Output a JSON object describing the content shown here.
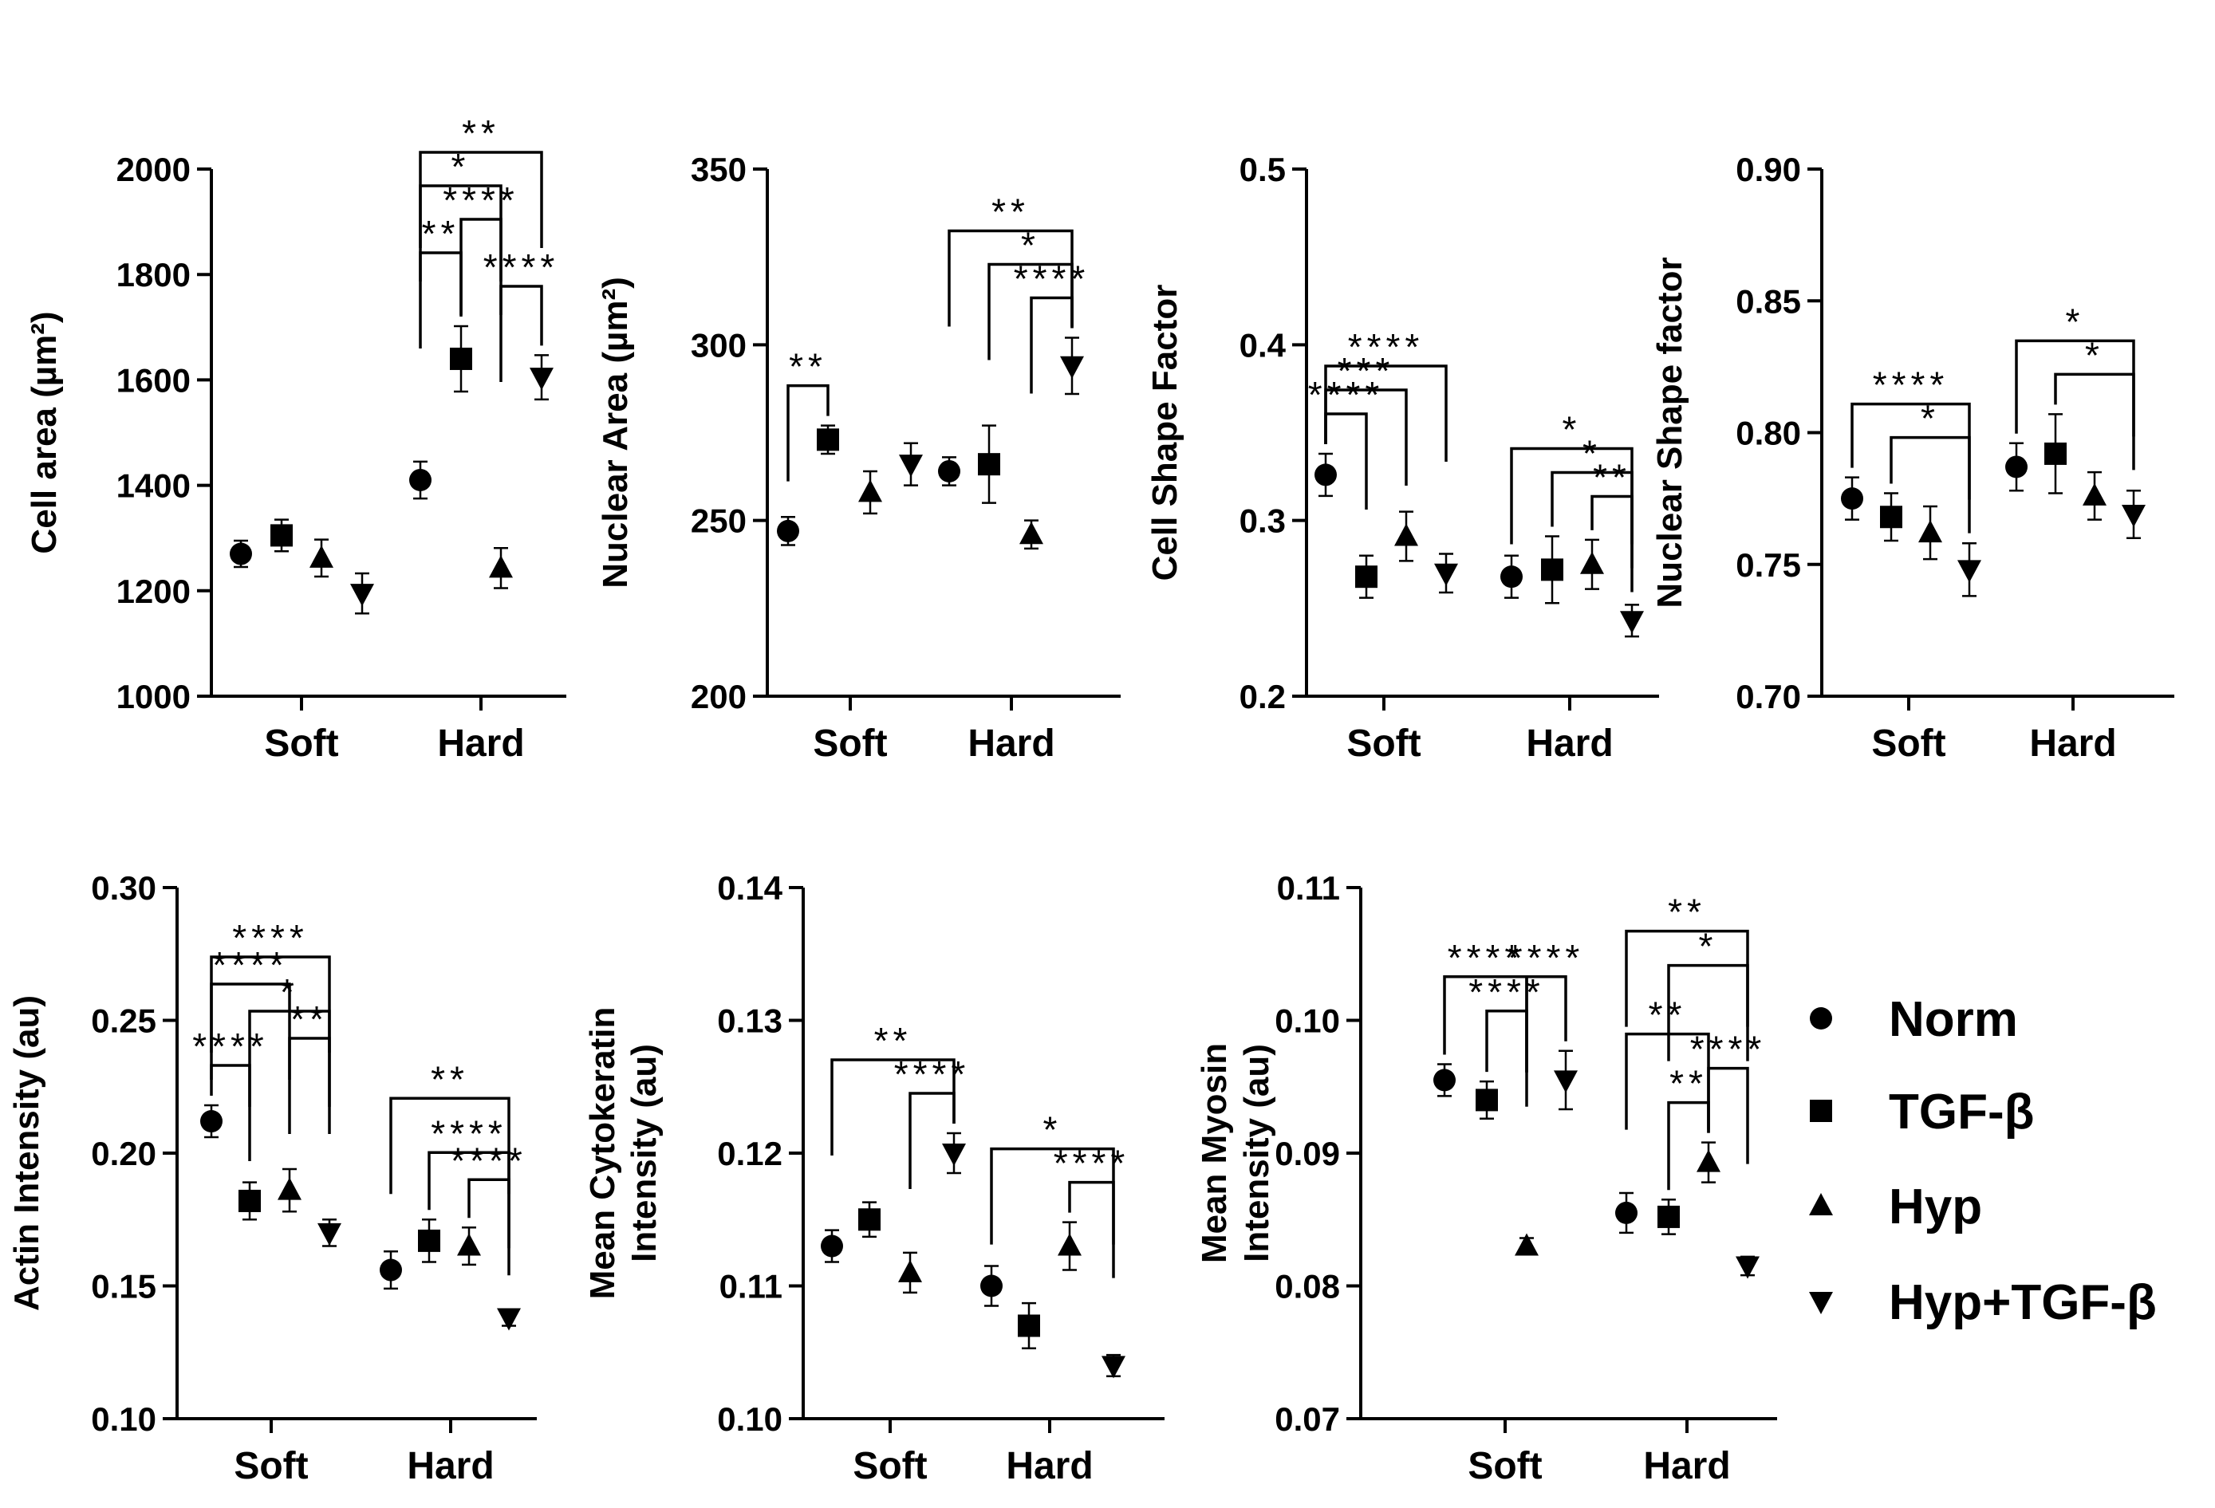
{
  "chart_data": [
    {
      "type": "scatter",
      "ylabel": "Cell area (µm²)",
      "ylim": [
        1000,
        2000
      ],
      "yticks": [
        1000,
        1200,
        1400,
        1600,
        1800,
        2000
      ],
      "ytick_labels": [
        "1000",
        "1200",
        "1400",
        "1600",
        "1800",
        "2000"
      ],
      "categories": [
        "Soft",
        "Hard"
      ],
      "series": [
        {
          "name": "Norm",
          "marker": "circle",
          "values": [
            1270,
            1410
          ],
          "errors": [
            25,
            35
          ]
        },
        {
          "name": "TGF-β",
          "marker": "square",
          "values": [
            1305,
            1640
          ],
          "errors": [
            30,
            62
          ]
        },
        {
          "name": "Hyp",
          "marker": "triangle-up",
          "values": [
            1262,
            1243
          ],
          "errors": [
            35,
            38
          ]
        },
        {
          "name": "Hyp+TGF-β",
          "marker": "triangle-down",
          "values": [
            1195,
            1605
          ],
          "errors": [
            38,
            42
          ]
        }
      ],
      "significance": [
        {
          "from": [
            1,
            0
          ],
          "to": [
            1,
            3
          ],
          "level": 4,
          "label": "**"
        },
        {
          "from": [
            1,
            0
          ],
          "to": [
            1,
            2
          ],
          "level": 3,
          "label": "*"
        },
        {
          "from": [
            1,
            1
          ],
          "to": [
            1,
            2
          ],
          "level": 2,
          "label": "****"
        },
        {
          "from": [
            1,
            0
          ],
          "to": [
            1,
            1
          ],
          "level": 1,
          "label": "**"
        },
        {
          "from": [
            1,
            2
          ],
          "to": [
            1,
            3
          ],
          "level": 0,
          "label": "****"
        }
      ]
    },
    {
      "type": "scatter",
      "ylabel": "Nuclear Area (µm²)",
      "ylim": [
        200,
        350
      ],
      "yticks": [
        200,
        250,
        300,
        350
      ],
      "ytick_labels": [
        "200",
        "250",
        "300",
        "350"
      ],
      "categories": [
        "Soft",
        "Hard"
      ],
      "series": [
        {
          "name": "Norm",
          "marker": "circle",
          "values": [
            247,
            264
          ],
          "errors": [
            4,
            4
          ]
        },
        {
          "name": "TGF-β",
          "marker": "square",
          "values": [
            273,
            266
          ],
          "errors": [
            4,
            11
          ]
        },
        {
          "name": "Hyp",
          "marker": "triangle-up",
          "values": [
            258,
            246
          ],
          "errors": [
            6,
            4
          ]
        },
        {
          "name": "Hyp+TGF-β",
          "marker": "triangle-down",
          "values": [
            266,
            294
          ],
          "errors": [
            6,
            8
          ]
        }
      ],
      "significance": [
        {
          "from": [
            0,
            0
          ],
          "to": [
            0,
            1
          ],
          "level": 0,
          "label": "**"
        },
        {
          "from": [
            1,
            0
          ],
          "to": [
            1,
            3
          ],
          "level": 2,
          "label": "**"
        },
        {
          "from": [
            1,
            1
          ],
          "to": [
            1,
            3
          ],
          "level": 1,
          "label": "*"
        },
        {
          "from": [
            1,
            2
          ],
          "to": [
            1,
            3
          ],
          "level": 0,
          "label": "****"
        }
      ]
    },
    {
      "type": "scatter",
      "ylabel": "Cell Shape Factor",
      "ylim": [
        0.2,
        0.5
      ],
      "yticks": [
        0.2,
        0.3,
        0.4,
        0.5
      ],
      "ytick_labels": [
        "0.2",
        "0.3",
        "0.4",
        "0.5"
      ],
      "categories": [
        "Soft",
        "Hard"
      ],
      "series": [
        {
          "name": "Norm",
          "marker": "circle",
          "values": [
            0.326,
            0.268
          ],
          "errors": [
            0.012,
            0.012
          ]
        },
        {
          "name": "TGF-β",
          "marker": "square",
          "values": [
            0.268,
            0.272
          ],
          "errors": [
            0.012,
            0.019
          ]
        },
        {
          "name": "Hyp",
          "marker": "triangle-up",
          "values": [
            0.291,
            0.275
          ],
          "errors": [
            0.014,
            0.014
          ]
        },
        {
          "name": "Hyp+TGF-β",
          "marker": "triangle-down",
          "values": [
            0.27,
            0.243
          ],
          "errors": [
            0.011,
            0.009
          ]
        }
      ],
      "significance": [
        {
          "from": [
            0,
            0
          ],
          "to": [
            0,
            3
          ],
          "level": 2,
          "label": "****"
        },
        {
          "from": [
            0,
            0
          ],
          "to": [
            0,
            2
          ],
          "level": 1,
          "label": "***"
        },
        {
          "from": [
            0,
            0
          ],
          "to": [
            0,
            1
          ],
          "level": 0,
          "label": "****"
        },
        {
          "from": [
            1,
            0
          ],
          "to": [
            1,
            3
          ],
          "level": 2,
          "label": "*"
        },
        {
          "from": [
            1,
            1
          ],
          "to": [
            1,
            3
          ],
          "level": 1,
          "label": "*"
        },
        {
          "from": [
            1,
            2
          ],
          "to": [
            1,
            3
          ],
          "level": 0,
          "label": "**"
        }
      ]
    },
    {
      "type": "scatter",
      "ylabel": "Nuclear Shape factor",
      "ylim": [
        0.7,
        0.9
      ],
      "yticks": [
        0.7,
        0.75,
        0.8,
        0.85,
        0.9
      ],
      "ytick_labels": [
        "0.70",
        "0.75",
        "0.80",
        "0.85",
        "0.90"
      ],
      "categories": [
        "Soft",
        "Hard"
      ],
      "series": [
        {
          "name": "Norm",
          "marker": "circle",
          "values": [
            0.775,
            0.787
          ],
          "errors": [
            0.008,
            0.009
          ]
        },
        {
          "name": "TGF-β",
          "marker": "square",
          "values": [
            0.768,
            0.792
          ],
          "errors": [
            0.009,
            0.015
          ]
        },
        {
          "name": "Hyp",
          "marker": "triangle-up",
          "values": [
            0.762,
            0.776
          ],
          "errors": [
            0.01,
            0.009
          ]
        },
        {
          "name": "Hyp+TGF-β",
          "marker": "triangle-down",
          "values": [
            0.748,
            0.769
          ],
          "errors": [
            0.01,
            0.009
          ]
        }
      ],
      "significance": [
        {
          "from": [
            0,
            0
          ],
          "to": [
            0,
            3
          ],
          "level": 1,
          "label": "****"
        },
        {
          "from": [
            0,
            1
          ],
          "to": [
            0,
            3
          ],
          "level": 0,
          "label": "*"
        },
        {
          "from": [
            1,
            0
          ],
          "to": [
            1,
            3
          ],
          "level": 1,
          "label": "*"
        },
        {
          "from": [
            1,
            1
          ],
          "to": [
            1,
            3
          ],
          "level": 0,
          "label": "*"
        }
      ]
    },
    {
      "type": "scatter",
      "ylabel": "Actin Intensity (au)",
      "ylim": [
        0.1,
        0.3
      ],
      "yticks": [
        0.1,
        0.15,
        0.2,
        0.25,
        0.3
      ],
      "ytick_labels": [
        "0.10",
        "0.15",
        "0.20",
        "0.25",
        "0.30"
      ],
      "categories": [
        "Soft",
        "Hard"
      ],
      "series": [
        {
          "name": "Norm",
          "marker": "circle",
          "values": [
            0.212,
            0.156
          ],
          "errors": [
            0.006,
            0.007
          ]
        },
        {
          "name": "TGF-β",
          "marker": "square",
          "values": [
            0.182,
            0.167
          ],
          "errors": [
            0.007,
            0.008
          ]
        },
        {
          "name": "Hyp",
          "marker": "triangle-up",
          "values": [
            0.186,
            0.165
          ],
          "errors": [
            0.008,
            0.007
          ]
        },
        {
          "name": "Hyp+TGF-β",
          "marker": "triangle-down",
          "values": [
            0.17,
            0.138
          ],
          "errors": [
            0.005,
            0.003
          ]
        }
      ],
      "significance": [
        {
          "from": [
            0,
            0
          ],
          "to": [
            0,
            3
          ],
          "level": 4,
          "label": "****"
        },
        {
          "from": [
            0,
            0
          ],
          "to": [
            0,
            2
          ],
          "level": 3,
          "label": "****"
        },
        {
          "from": [
            0,
            0
          ],
          "to": [
            0,
            1
          ],
          "level": 0,
          "label": "****"
        },
        {
          "from": [
            0,
            1
          ],
          "to": [
            0,
            3
          ],
          "level": 2,
          "label": "*"
        },
        {
          "from": [
            0,
            2
          ],
          "to": [
            0,
            3
          ],
          "level": 1,
          "label": "**"
        },
        {
          "from": [
            1,
            0
          ],
          "to": [
            1,
            3
          ],
          "level": 3,
          "label": "**"
        },
        {
          "from": [
            1,
            1
          ],
          "to": [
            1,
            3
          ],
          "level": 1,
          "label": "****"
        },
        {
          "from": [
            1,
            2
          ],
          "to": [
            1,
            3
          ],
          "level": 0,
          "label": "****"
        }
      ]
    },
    {
      "type": "scatter",
      "ylabel": [
        "Mean Cytokeratin",
        "Intensity (au)"
      ],
      "ylim": [
        0.1,
        0.14
      ],
      "yticks": [
        0.1,
        0.11,
        0.12,
        0.13,
        0.14
      ],
      "ytick_labels": [
        "0.10",
        "0.11",
        "0.12",
        "0.13",
        "0.14"
      ],
      "categories": [
        "Soft",
        "Hard"
      ],
      "series": [
        {
          "name": "Norm",
          "marker": "circle",
          "values": [
            0.113,
            0.11
          ],
          "errors": [
            0.0012,
            0.0015
          ]
        },
        {
          "name": "TGF-β",
          "marker": "square",
          "values": [
            0.115,
            0.107
          ],
          "errors": [
            0.0013,
            0.0017
          ]
        },
        {
          "name": "Hyp",
          "marker": "triangle-up",
          "values": [
            0.111,
            0.113
          ],
          "errors": [
            0.0015,
            0.0018
          ]
        },
        {
          "name": "Hyp+TGF-β",
          "marker": "triangle-down",
          "values": [
            0.12,
            0.104
          ],
          "errors": [
            0.0015,
            0.0008
          ]
        }
      ],
      "significance": [
        {
          "from": [
            0,
            0
          ],
          "to": [
            0,
            3
          ],
          "level": 1,
          "label": "**"
        },
        {
          "from": [
            0,
            2
          ],
          "to": [
            0,
            3
          ],
          "level": 0,
          "label": "****"
        },
        {
          "from": [
            1,
            0
          ],
          "to": [
            1,
            3
          ],
          "level": 1,
          "label": "*"
        },
        {
          "from": [
            1,
            2
          ],
          "to": [
            1,
            3
          ],
          "level": 0,
          "label": "****"
        }
      ]
    },
    {
      "type": "scatter",
      "ylabel": [
        "Mean Myosin",
        "Intensity (au)"
      ],
      "ylim": [
        0.07,
        0.11
      ],
      "yticks": [
        0.07,
        0.08,
        0.09,
        0.1,
        0.11
      ],
      "ytick_labels": [
        "0.07",
        "0.08",
        "0.09",
        "0.10",
        "0.11"
      ],
      "categories": [
        "Soft",
        "Hard"
      ],
      "series": [
        {
          "name": "Norm",
          "marker": "circle",
          "values": [
            0.0955,
            0.0855
          ],
          "errors": [
            0.0012,
            0.0015
          ]
        },
        {
          "name": "TGF-β",
          "marker": "square",
          "values": [
            0.094,
            0.0852
          ],
          "errors": [
            0.0014,
            0.0013
          ]
        },
        {
          "name": "Hyp",
          "marker": "triangle-up",
          "values": [
            0.083,
            0.0893
          ],
          "errors": [
            0.0006,
            0.0015
          ]
        },
        {
          "name": "Hyp+TGF-β",
          "marker": "triangle-down",
          "values": [
            0.0955,
            0.0815
          ],
          "errors": [
            0.0022,
            0.0007
          ]
        }
      ],
      "significance": [
        {
          "from": [
            0,
            0
          ],
          "to": [
            0,
            2
          ],
          "level": 1,
          "label": "****"
        },
        {
          "from": [
            0,
            2
          ],
          "to": [
            0,
            3
          ],
          "level": 1,
          "label": "****"
        },
        {
          "from": [
            0,
            1
          ],
          "to": [
            0,
            2
          ],
          "level": 0,
          "label": "****"
        },
        {
          "from": [
            1,
            0
          ],
          "to": [
            1,
            3
          ],
          "level": 5,
          "label": "**"
        },
        {
          "from": [
            1,
            1
          ],
          "to": [
            1,
            3
          ],
          "level": 4,
          "label": "*"
        },
        {
          "from": [
            1,
            0
          ],
          "to": [
            1,
            2
          ],
          "level": 2,
          "label": "**"
        },
        {
          "from": [
            1,
            2
          ],
          "to": [
            1,
            3
          ],
          "level": 1,
          "label": "****"
        },
        {
          "from": [
            1,
            1
          ],
          "to": [
            1,
            2
          ],
          "level": 0,
          "label": "**"
        }
      ]
    }
  ],
  "legend": {
    "placement": "right",
    "items": [
      {
        "marker": "circle",
        "label": "Norm"
      },
      {
        "marker": "square",
        "label": "TGF-β"
      },
      {
        "marker": "triangle-up",
        "label": "Hyp"
      },
      {
        "marker": "triangle-down",
        "label": "Hyp+TGF-β"
      }
    ]
  }
}
